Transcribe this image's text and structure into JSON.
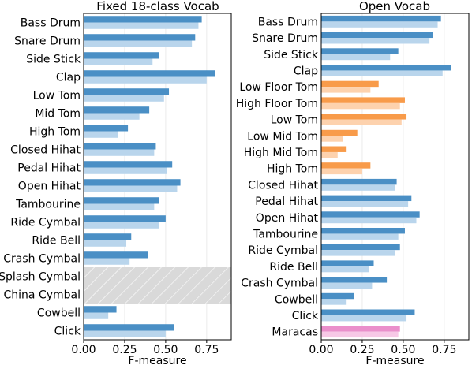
{
  "colors": {
    "dark_blue": "#4a8fc5",
    "light_blue": "#b9d5ec",
    "dark_orange": "#f89b4a",
    "light_orange": "#fdd2ae",
    "dark_pink": "#ea8fcb",
    "light_pink": "#f7c8e6",
    "na_band": "#d9d9d9"
  },
  "chart_data": [
    {
      "type": "bar",
      "title": "Fixed 18-class Vocab",
      "xlabel": "F-measure",
      "ylabel": "",
      "xlim": [
        0,
        0.9
      ],
      "xticks": [
        "0.00",
        "0.25",
        "0.50",
        "0.75"
      ],
      "grid": "vertical",
      "categories": [
        "Bass Drum",
        "Snare Drum",
        "Side Stick",
        "Clap",
        "Low Tom",
        "Mid Tom",
        "High Tom",
        "Closed Hihat",
        "Pedal Hihat",
        "Open Hihat",
        "Tambourine",
        "Ride Cymbal",
        "Ride Bell",
        "Crash Cymbal",
        "Splash Cymbal",
        "China Cymbal",
        "Cowbell",
        "Click"
      ],
      "series": [
        {
          "color_key": "dark",
          "values": [
            0.72,
            0.68,
            0.46,
            0.8,
            0.52,
            0.4,
            0.27,
            0.44,
            0.54,
            0.59,
            0.46,
            0.5,
            0.29,
            0.39,
            null,
            null,
            0.2,
            0.55
          ]
        },
        {
          "color_key": "light",
          "values": [
            0.7,
            0.66,
            0.42,
            0.75,
            0.49,
            0.34,
            0.21,
            0.43,
            0.51,
            0.57,
            0.43,
            0.46,
            0.26,
            0.28,
            null,
            null,
            0.15,
            0.5
          ]
        }
      ],
      "shaded_categories": [
        "Splash Cymbal",
        "China Cymbal"
      ]
    },
    {
      "type": "bar",
      "title": "Open Vocab",
      "xlabel": "F-measure",
      "ylabel": "",
      "xlim": [
        0,
        0.9
      ],
      "xticks": [
        "0.00",
        "0.25",
        "0.50",
        "0.75"
      ],
      "grid": "vertical",
      "categories": [
        "Bass Drum",
        "Snare Drum",
        "Side Stick",
        "Clap",
        "Low Floor Tom",
        "High Floor Tom",
        "Low Tom",
        "Low Mid Tom",
        "High Mid Tom",
        "High Tom",
        "Closed Hihat",
        "Pedal Hihat",
        "Open Hihat",
        "Tambourine",
        "Ride Cymbal",
        "Ride Bell",
        "Crash Cymbal",
        "Cowbell",
        "Click",
        "Maracas"
      ],
      "bar_colors": [
        "blue",
        "blue",
        "blue",
        "blue",
        "orange",
        "orange",
        "orange",
        "orange",
        "orange",
        "orange",
        "blue",
        "blue",
        "blue",
        "blue",
        "blue",
        "blue",
        "blue",
        "blue",
        "blue",
        "pink"
      ],
      "series": [
        {
          "color_key": "dark",
          "values": [
            0.73,
            0.68,
            0.47,
            0.79,
            0.35,
            0.51,
            0.52,
            0.22,
            0.15,
            0.3,
            0.46,
            0.55,
            0.6,
            0.51,
            0.48,
            0.32,
            0.4,
            0.2,
            0.57,
            0.48
          ]
        },
        {
          "color_key": "light",
          "values": [
            0.71,
            0.66,
            0.42,
            0.74,
            0.3,
            0.48,
            0.49,
            0.13,
            0.1,
            0.25,
            0.45,
            0.53,
            0.58,
            0.47,
            0.45,
            0.29,
            0.31,
            0.15,
            0.52,
            0.47
          ]
        }
      ]
    }
  ]
}
